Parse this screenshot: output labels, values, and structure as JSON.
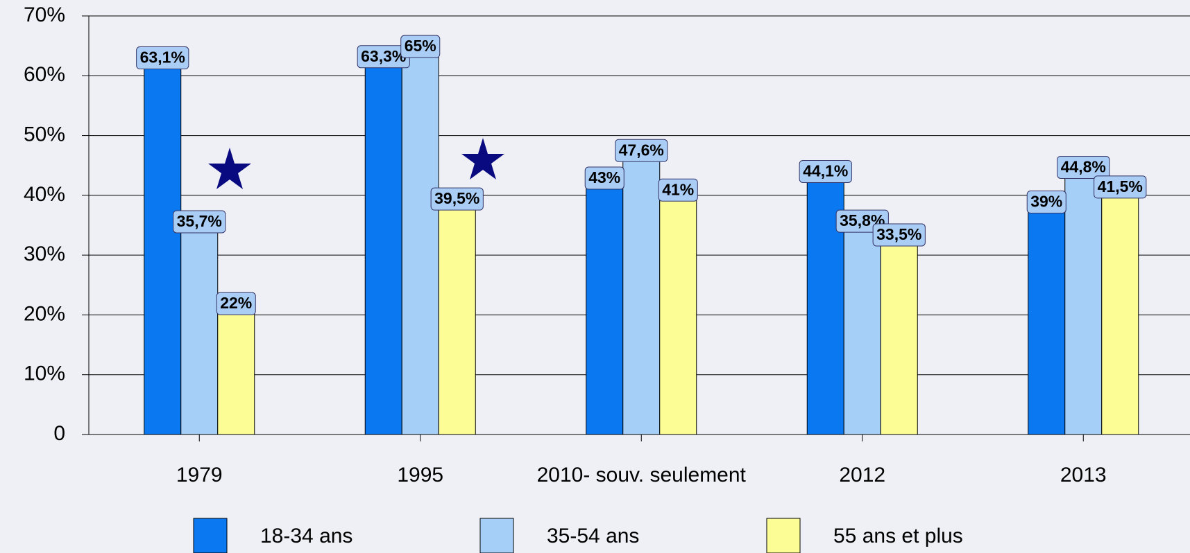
{
  "chart_data": {
    "type": "bar",
    "categories": [
      "1979",
      "1995",
      "2010- souv. seulement",
      "2012",
      "2013"
    ],
    "series": [
      {
        "name": "18-34 ans",
        "color": "#0a78f0",
        "values": [
          63.1,
          63.3,
          43,
          44.1,
          39
        ],
        "value_labels": [
          "63,1%",
          "63,3%",
          "43%",
          "44,1%",
          "39%"
        ]
      },
      {
        "name": "35-54 ans",
        "color": "#a6cff8",
        "values": [
          35.7,
          65,
          47.6,
          35.8,
          44.8
        ],
        "value_labels": [
          "35,7%",
          "65%",
          "47,6%",
          "35,8%",
          "44,8%"
        ]
      },
      {
        "name": "55 ans et plus",
        "color": "#fdfd96",
        "values": [
          22,
          39.5,
          41,
          33.5,
          41.5
        ],
        "value_labels": [
          "22%",
          "39,5%",
          "41%",
          "33,5%",
          "41,5%"
        ]
      }
    ],
    "ylim": [
      0,
      70
    ],
    "yticks": [
      0,
      {
        "value": 10,
        "label": "10%"
      },
      {
        "value": 20,
        "label": "20%"
      },
      {
        "value": 30,
        "label": "30%"
      },
      {
        "value": 40,
        "label": "40%"
      },
      {
        "value": 50,
        "label": "50%"
      },
      {
        "value": 60,
        "label": "60%"
      },
      {
        "value": 70,
        "label": "70%"
      }
    ],
    "grid": true,
    "legend": "bottom"
  }
}
